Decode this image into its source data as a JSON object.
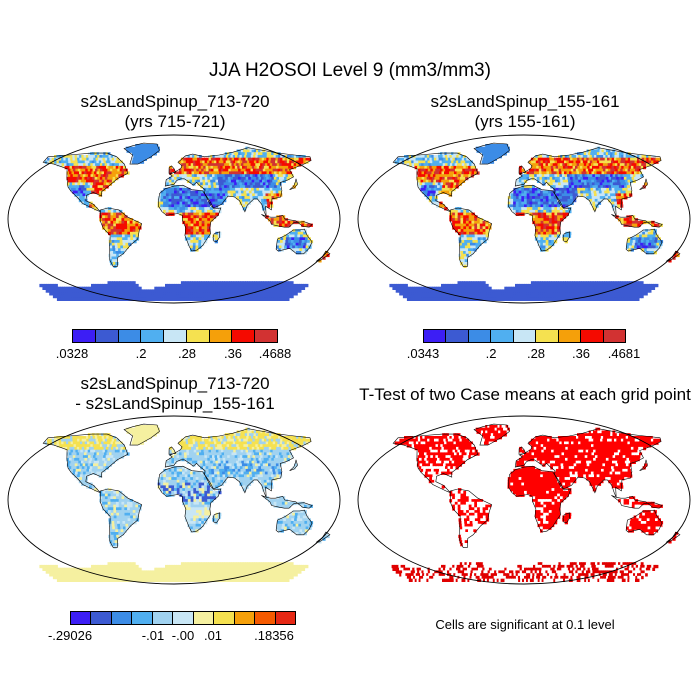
{
  "main_title": "JJA H2OSOI Level 9 (mm3/mm3)",
  "panels": [
    {
      "title_line1": "s2sLandSpinup_713-720",
      "title_line2": "(yrs 715-721)",
      "colorbar": {
        "colors": [
          "#3c1ef5",
          "#3c5ad2",
          "#3c8ce6",
          "#50aff0",
          "#c8e6f5",
          "#f5e150",
          "#f5a00a",
          "#f50a00",
          "#d23232"
        ],
        "labels": [
          ".0328",
          ".2",
          ".28",
          ".36",
          ".4688"
        ]
      }
    },
    {
      "title_line1": "s2sLandSpinup_155-161",
      "title_line2": "(yrs 155-161)",
      "colorbar": {
        "colors": [
          "#3c1ef5",
          "#3c5ad2",
          "#3c8ce6",
          "#50aff0",
          "#c8e6f5",
          "#f5e150",
          "#f5a00a",
          "#f50a00",
          "#d23232"
        ],
        "labels": [
          ".0343",
          ".2",
          ".28",
          ".36",
          ".4681"
        ]
      }
    },
    {
      "title_line1": "s2sLandSpinup_713-720",
      "title_line2": "- s2sLandSpinup_155-161",
      "colorbar": {
        "colors": [
          "#3c1ef5",
          "#3c5ad2",
          "#3c8ce6",
          "#50aff0",
          "#a0d2f0",
          "#c8e6f5",
          "#f5f0a0",
          "#f5e150",
          "#f5a00a",
          "#f55a00",
          "#e62814"
        ],
        "labels": [
          "-.29026",
          "-.01",
          "-.00",
          ".01",
          ".18356"
        ]
      }
    },
    {
      "title_line1": "T-Test of two Case means at each grid point",
      "title_line2": "",
      "note": "Cells are significant at 0.1 level"
    }
  ]
}
